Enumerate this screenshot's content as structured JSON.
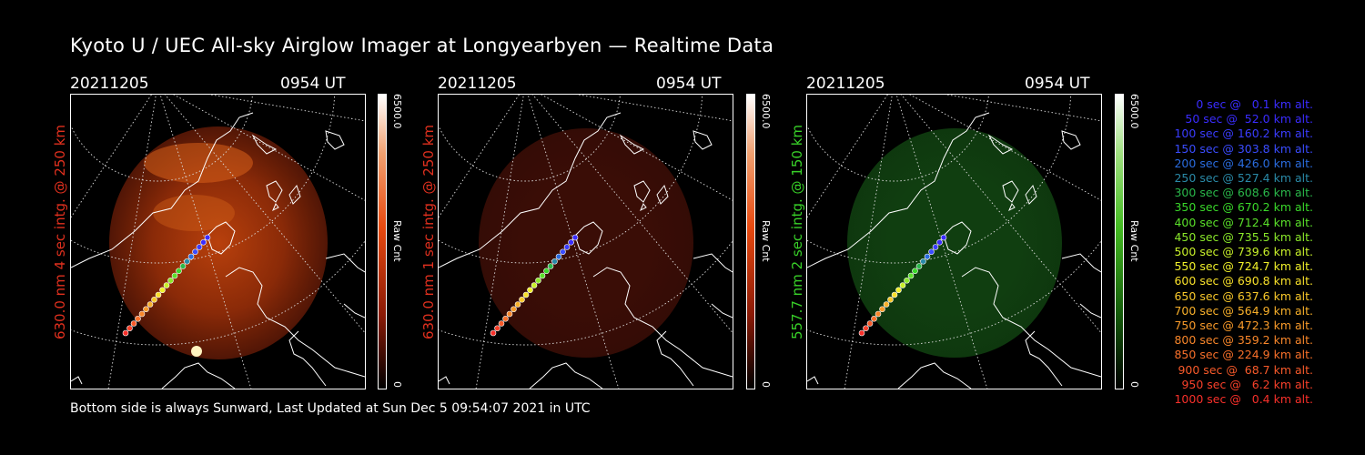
{
  "title": "Kyoto U / UEC All-sky Airglow Imager at Longyearbyen — Realtime Data",
  "footer": "Bottom side is always Sunward, Last Updated at Sun Dec  5 09:54:07 2021 in UTC",
  "panels": [
    {
      "date": "20211205",
      "time": "0954 UT",
      "side_label": "630.0 nm 4 sec intg. @ 250 km",
      "side_color": "#e0301e",
      "cbar_max": "6500.0",
      "cbar_min": "0",
      "cbar_unit": "Raw Cnt",
      "color_top": "#ffffff",
      "color_mid": "#e84a10",
      "color_bot": "#000000",
      "glow": "#8a2a08",
      "glow_level": "bright"
    },
    {
      "date": "20211205",
      "time": "0954 UT",
      "side_label": "630.0 nm 1 sec intg. @ 250 km",
      "side_color": "#e0301e",
      "cbar_max": "6500.0",
      "cbar_min": "0",
      "cbar_unit": "Raw Cnt",
      "color_top": "#ffffff",
      "color_mid": "#e84a10",
      "color_bot": "#000000",
      "glow": "#3a0d06",
      "glow_level": "dim"
    },
    {
      "date": "20211205",
      "time": "0954 UT",
      "side_label": "557.7 nm 2 sec intg. @ 150 km",
      "side_color": "#38d028",
      "cbar_max": "6500.0",
      "cbar_min": "0",
      "cbar_unit": "Raw Cnt",
      "color_top": "#ffffff",
      "color_mid": "#44bb22",
      "color_bot": "#000000",
      "glow": "#103e10",
      "glow_level": "dim"
    }
  ],
  "trajectory_legend": [
    {
      "text": "0 sec @   0.1 km alt.",
      "color": "#3a2cff"
    },
    {
      "text": "50 sec @  52.0 km alt.",
      "color": "#3a2cff"
    },
    {
      "text": "100 sec @ 160.2 km alt.",
      "color": "#3a3cff"
    },
    {
      "text": "150 sec @ 303.8 km alt.",
      "color": "#3a4cff"
    },
    {
      "text": "200 sec @ 426.0 km alt.",
      "color": "#2a6cdf"
    },
    {
      "text": "250 sec @ 527.4 km alt.",
      "color": "#2a8aa8"
    },
    {
      "text": "300 sec @ 608.6 km alt.",
      "color": "#2ab84a"
    },
    {
      "text": "350 sec @ 670.2 km alt.",
      "color": "#3ad82a"
    },
    {
      "text": "400 sec @ 712.4 km alt.",
      "color": "#5ae02a"
    },
    {
      "text": "450 sec @ 735.5 km alt.",
      "color": "#8ae82a"
    },
    {
      "text": "500 sec @ 739.6 km alt.",
      "color": "#c8f02a"
    },
    {
      "text": "550 sec @ 724.7 km alt.",
      "color": "#f0f02a"
    },
    {
      "text": "600 sec @ 690.8 km alt.",
      "color": "#f8e02a"
    },
    {
      "text": "650 sec @ 637.6 km alt.",
      "color": "#f8c82a"
    },
    {
      "text": "700 sec @ 564.9 km alt.",
      "color": "#f8b02a"
    },
    {
      "text": "750 sec @ 472.3 km alt.",
      "color": "#f89a2a"
    },
    {
      "text": "800 sec @ 359.2 km alt.",
      "color": "#f8862a"
    },
    {
      "text": "850 sec @ 224.9 km alt.",
      "color": "#f8702a"
    },
    {
      "text": "900 sec @  68.7 km alt.",
      "color": "#f85a2a"
    },
    {
      "text": "950 sec @   6.2 km alt.",
      "color": "#f8402a"
    },
    {
      "text": "1000 sec @   0.4 km alt.",
      "color": "#f8302a"
    }
  ]
}
